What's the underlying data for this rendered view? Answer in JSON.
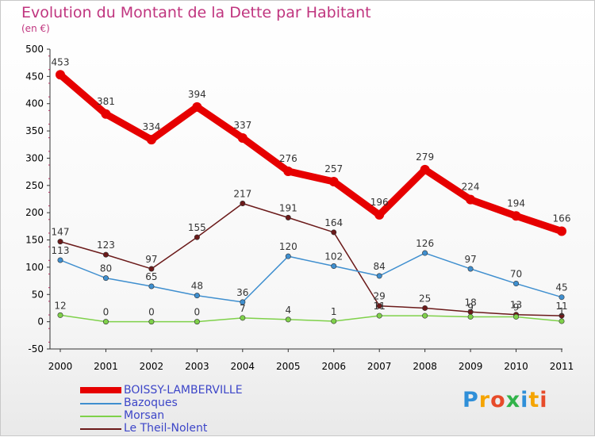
{
  "title": "Evolution du Montant de la Dette par Habitant",
  "subtitle": "(en €)",
  "logo_text": "Proxiti",
  "chart_data": {
    "type": "line",
    "x": [
      "2000",
      "2001",
      "2002",
      "2003",
      "2004",
      "2005",
      "2006",
      "2007",
      "2008",
      "2009",
      "2010",
      "2011"
    ],
    "ylim": [
      -50,
      500
    ],
    "yticks": [
      -50,
      0,
      50,
      100,
      150,
      200,
      250,
      300,
      350,
      400,
      450,
      500
    ],
    "grid": false,
    "legend_position": "bottom-left",
    "series": [
      {
        "name": "BOISSY-LAMBERVILLE",
        "color": "#e60000",
        "thick": true,
        "values": [
          453,
          381,
          334,
          394,
          337,
          276,
          257,
          196,
          279,
          224,
          194,
          166
        ],
        "labels": [
          "453",
          "381",
          "334",
          "394",
          "337",
          "276",
          "257",
          "196",
          "279",
          "224",
          "194",
          "166"
        ]
      },
      {
        "name": "Bazoques",
        "color": "#3f8fcf",
        "thick": false,
        "values": [
          113,
          80,
          65,
          48,
          36,
          120,
          102,
          84,
          126,
          97,
          70,
          45
        ],
        "labels": [
          "113",
          "80",
          "65",
          "48",
          "36",
          "120",
          "102",
          "84",
          "126",
          "97",
          "70",
          "45"
        ]
      },
      {
        "name": "Morsan",
        "color": "#7fd14a",
        "thick": false,
        "values": [
          12,
          0,
          0,
          0,
          7,
          4,
          1,
          11,
          11,
          9,
          9,
          1
        ],
        "labels": [
          "12",
          "0",
          "0",
          "0",
          "7",
          "4",
          "1",
          "11",
          "",
          "9",
          "9",
          "1"
        ]
      },
      {
        "name": "Le Theil-Nolent",
        "color": "#6b1a1a",
        "thick": false,
        "values": [
          147,
          123,
          97,
          155,
          217,
          191,
          164,
          29,
          25,
          18,
          13,
          11
        ],
        "labels": [
          "147",
          "123",
          "97",
          "155",
          "217",
          "191",
          "164",
          "29",
          "25",
          "18",
          "13",
          "11"
        ]
      }
    ]
  }
}
